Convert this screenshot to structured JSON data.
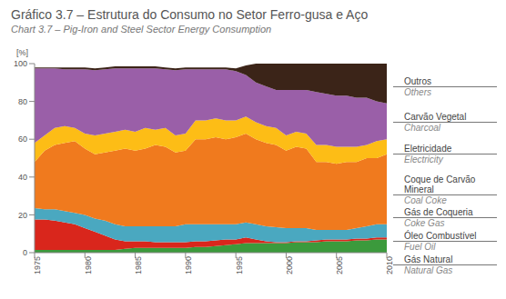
{
  "chart_data": {
    "type": "area",
    "stacked": true,
    "title": "Gráfico 3.7 – Estrutura do Consumo no Setor Ferro-gusa e Aço",
    "subtitle": "Chart 3.7 – Pig-Iron and Steel Sector Energy Consumption",
    "y_label": "[%]",
    "x": [
      1975,
      1976,
      1977,
      1978,
      1979,
      1980,
      1981,
      1982,
      1983,
      1984,
      1985,
      1986,
      1987,
      1988,
      1989,
      1990,
      1991,
      1992,
      1993,
      1994,
      1995,
      1996,
      1997,
      1998,
      1999,
      2000,
      2001,
      2002,
      2003,
      2004,
      2005,
      2006,
      2007,
      2008,
      2009,
      2010
    ],
    "xlim": [
      1975,
      2010
    ],
    "xticks": [
      1975,
      1980,
      1985,
      1990,
      1995,
      2000,
      2005,
      2010
    ],
    "ylim": [
      0,
      100
    ],
    "yticks": [
      0,
      20,
      40,
      60,
      80,
      100
    ],
    "grid": false,
    "series": [
      {
        "name": "Gás Natural",
        "name_en": "Natural Gas",
        "color": "#3b9a3c",
        "values": [
          1.5,
          1.5,
          1.5,
          1.5,
          1.5,
          1.5,
          1.5,
          1.5,
          1.5,
          2,
          2.5,
          2.5,
          2.5,
          2.5,
          2.5,
          2.5,
          3,
          3,
          3.5,
          4,
          4.5,
          5,
          5,
          5,
          5,
          5,
          5.5,
          5.5,
          5.5,
          6,
          6,
          6,
          6.5,
          6.5,
          7,
          7
        ]
      },
      {
        "name": "Óleo Combustível",
        "name_en": "Fuel Oil",
        "color": "#d9261c",
        "values": [
          16,
          16,
          15.5,
          14.5,
          13.5,
          11.5,
          9.5,
          7.5,
          5.5,
          4,
          3.5,
          3.5,
          3,
          3,
          3,
          3,
          3,
          3,
          3,
          3,
          2.5,
          3,
          2,
          1,
          0.5,
          0.5,
          0.5,
          0.5,
          1,
          1,
          1,
          1,
          1,
          1,
          1,
          1
        ]
      },
      {
        "name": "Gás de Coqueria",
        "name_en": "Coke Gas",
        "color": "#4aa8c0",
        "values": [
          6,
          5.5,
          6,
          6,
          6,
          7,
          7,
          8,
          8,
          8,
          8,
          8,
          8.5,
          8.5,
          8.5,
          9.5,
          9,
          9,
          8.5,
          8,
          8,
          8,
          8,
          8,
          8,
          7.5,
          7,
          7,
          5.5,
          5,
          5,
          5,
          5.5,
          6.5,
          7,
          7
        ]
      },
      {
        "name": "Coque de Carvão Mineral",
        "name_en": "Coal Coke",
        "color": "#f07a1e",
        "values": [
          24.5,
          31,
          34,
          36,
          38,
          35,
          34,
          36,
          39,
          41,
          40,
          41,
          43,
          42,
          39,
          39,
          45,
          45,
          46,
          45,
          46,
          47,
          45,
          44,
          43.5,
          41,
          43,
          42,
          36,
          36,
          35,
          36,
          35,
          36,
          35,
          37
        ]
      },
      {
        "name": "Eletricidade",
        "name_en": "Electricity",
        "color": "#fdbd16",
        "values": [
          10,
          8,
          9,
          9,
          7,
          8,
          10,
          10,
          10,
          10,
          10,
          11,
          8,
          10,
          9,
          9,
          10,
          10,
          10,
          10,
          9,
          9,
          9,
          9,
          9,
          8,
          8,
          8,
          9,
          9,
          9,
          8,
          8,
          7,
          9,
          8
        ]
      },
      {
        "name": "Carvão Vegetal",
        "name_en": "Charcoal",
        "color": "#9a5fa8",
        "values": [
          39.5,
          35.5,
          31.5,
          30,
          31,
          34,
          34.5,
          34,
          33.5,
          32.5,
          33.5,
          31.5,
          32.5,
          31,
          34.5,
          34,
          27,
          27,
          26,
          27,
          26,
          22,
          21,
          21,
          20,
          24,
          22,
          23,
          28,
          27,
          27,
          27,
          26,
          25,
          21,
          19
        ]
      },
      {
        "name": "Outros",
        "name_en": "Others",
        "color": "#3b2418",
        "values": [
          0.5,
          0.5,
          0.5,
          1,
          1,
          1,
          1,
          1,
          1,
          1,
          1,
          1,
          1,
          1,
          1,
          1,
          1,
          1,
          1,
          1,
          1.5,
          5,
          10,
          12,
          14,
          14,
          14,
          14,
          15,
          16,
          17,
          17,
          18,
          18,
          20,
          21
        ]
      }
    ]
  }
}
